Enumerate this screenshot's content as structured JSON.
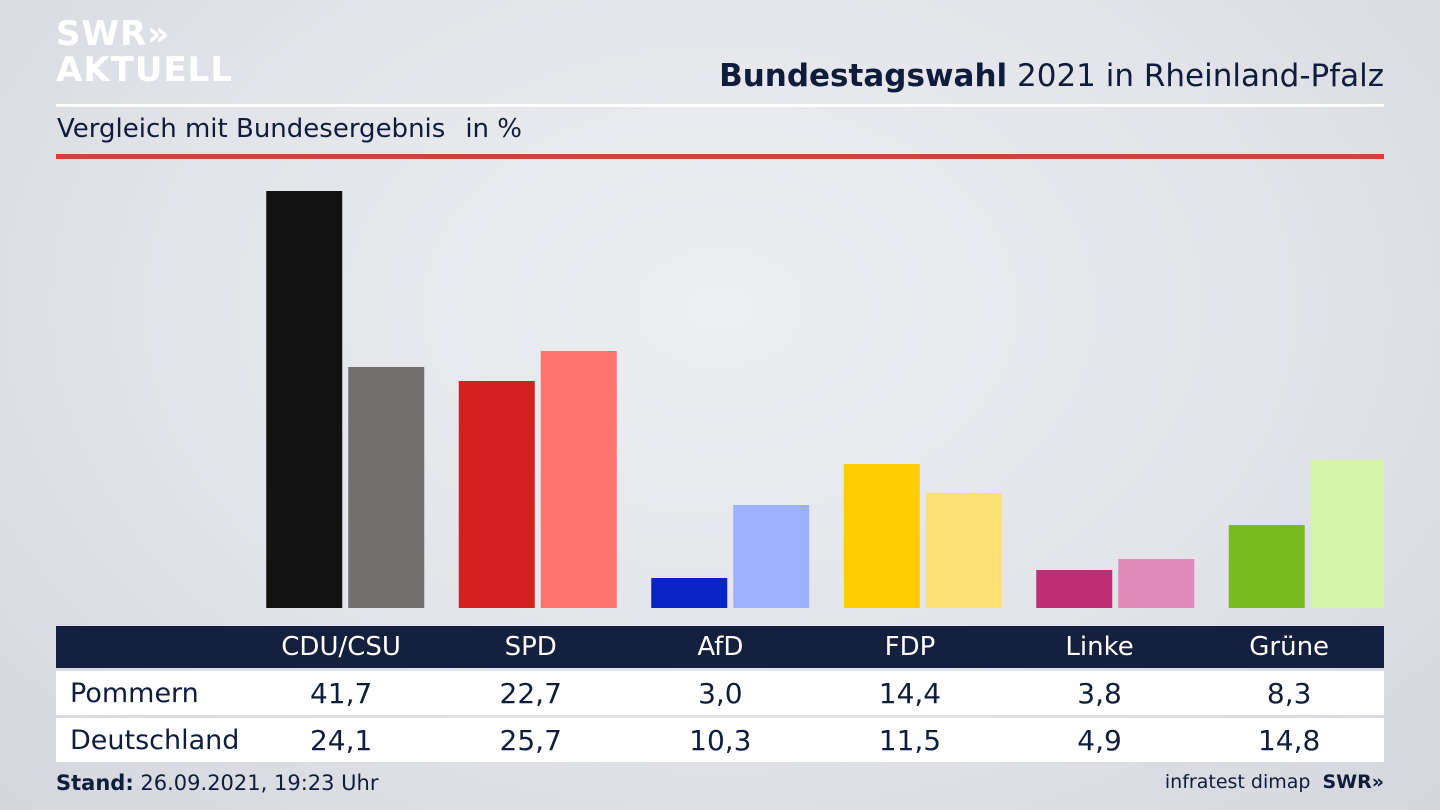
{
  "brand": {
    "logo_line1": "SWR»",
    "logo_line2": "AKTUELL"
  },
  "header": {
    "title_bold": "Bundestagswahl",
    "title_rest": " 2021 in Rheinland-Pfalz",
    "subtitle": "Vergleich mit Bundesergebnis",
    "unit": "in %"
  },
  "chart_data": {
    "type": "bar",
    "categories": [
      "CDU/CSU",
      "SPD",
      "AfD",
      "FDP",
      "Linke",
      "Grüne"
    ],
    "series": [
      {
        "name": "Pommern",
        "values": [
          41.7,
          22.7,
          3.0,
          14.4,
          3.8,
          8.3
        ]
      },
      {
        "name": "Deutschland",
        "values": [
          24.1,
          25.7,
          10.3,
          11.5,
          4.9,
          14.8
        ]
      }
    ],
    "colors": {
      "CDU/CSU": [
        "#121212",
        "#72706e"
      ],
      "SPD": [
        "#d42020",
        "#ff746c"
      ],
      "AfD": [
        "#0a24c6",
        "#9fb0ff"
      ],
      "FDP": [
        "#ffcc00",
        "#fde075"
      ],
      "Linke": [
        "#bf2e74",
        "#e08ab8"
      ],
      "Grüne": [
        "#77bb20",
        "#d5f6a6"
      ]
    },
    "ylim": [
      0,
      42
    ],
    "grid": false,
    "legend": "table-below"
  },
  "table": {
    "headers": [
      "CDU/CSU",
      "SPD",
      "AfD",
      "FDP",
      "Linke",
      "Grüne"
    ],
    "rows": [
      {
        "label": "Pommern",
        "values": [
          "41,7",
          "22,7",
          "3,0",
          "14,4",
          "3,8",
          "8,3"
        ]
      },
      {
        "label": "Deutschland",
        "values": [
          "24,1",
          "25,7",
          "10,3",
          "11,5",
          "4,9",
          "14,8"
        ]
      }
    ]
  },
  "footer": {
    "stand_label": "Stand:",
    "stand_value": " 26.09.2021, 19:23 Uhr",
    "source": "infratest dimap",
    "brand": "SWR»"
  }
}
